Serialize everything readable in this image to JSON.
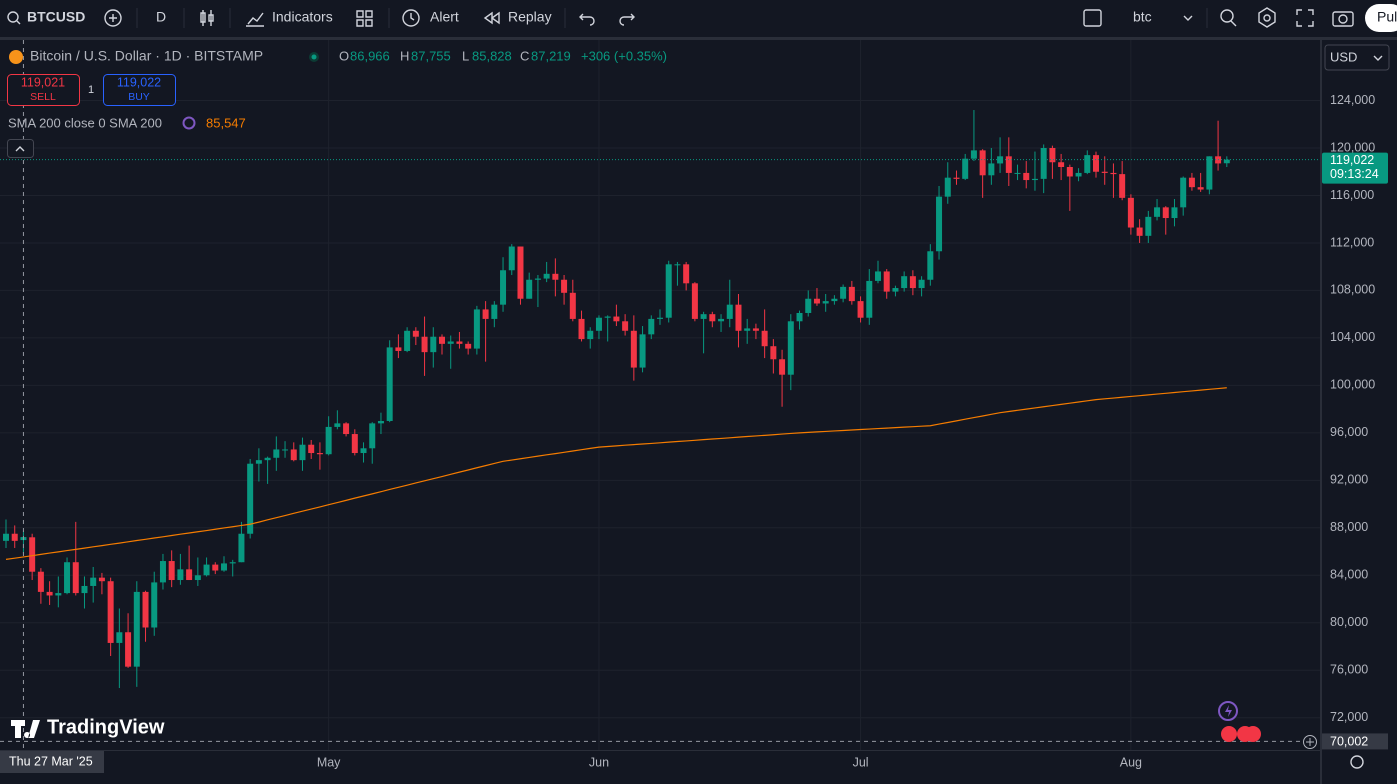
{
  "toolbar": {
    "symbol": "BTCUSD",
    "interval": "D",
    "indicators": "Indicators",
    "alert": "Alert",
    "replay": "Replay",
    "layout": "btc",
    "publish": "Pul"
  },
  "legend": {
    "title": "Bitcoin / U.S. Dollar · 1D · BITSTAMP",
    "o_label": "O",
    "open": "86,966",
    "h_label": "H",
    "high": "87,755",
    "l_label": "L",
    "low": "85,828",
    "c_label": "C",
    "close": "87,219",
    "change": "+306 (+0.35%)"
  },
  "trade": {
    "sell_price": "119,021",
    "sell": "SELL",
    "quantity": "1",
    "buy_price": "119,022",
    "buy": "BUY"
  },
  "indicator": {
    "name": "SMA 200 close 0 SMA 200",
    "value": "85,547"
  },
  "currency": "USD",
  "brand": "TradingView",
  "crosshair_date": "Thu 27 Mar '25",
  "countdown": "09:13:24",
  "chart_data": {
    "type": "candlestick",
    "up_color": "#089981",
    "down_color": "#f23645",
    "grid": true,
    "categories": [
      null,
      null,
      null,
      null,
      null,
      null,
      null,
      null,
      null,
      null,
      null,
      null,
      null,
      null,
      null,
      null,
      null,
      null,
      null,
      null,
      null,
      null,
      null,
      null,
      null,
      null,
      null,
      null,
      null,
      null,
      null,
      null,
      null,
      null,
      null,
      null,
      null,
      "May",
      null,
      null,
      null,
      null,
      null,
      null,
      null,
      null,
      null,
      null,
      null,
      null,
      null,
      null,
      null,
      null,
      null,
      null,
      null,
      null,
      null,
      null,
      null,
      null,
      null,
      null,
      null,
      null,
      null,
      null,
      "Jun",
      null,
      null,
      null,
      null,
      null,
      null,
      null,
      null,
      null,
      null,
      null,
      null,
      null,
      null,
      null,
      null,
      null,
      null,
      null,
      null,
      null,
      null,
      null,
      null,
      null,
      null,
      null,
      null,
      null,
      "Jul",
      null,
      null,
      null,
      null,
      null,
      null,
      null,
      null,
      null,
      null,
      null,
      null,
      null,
      null,
      null,
      null,
      null,
      null,
      null,
      null,
      null,
      null,
      null,
      null,
      null,
      null,
      null,
      null,
      null,
      null,
      "Aug",
      null,
      null,
      null,
      null,
      null,
      null,
      null,
      null,
      null,
      null,
      null
    ],
    "open": [
      86900,
      87500,
      86966,
      87200,
      84300,
      82600,
      82300,
      82500,
      85100,
      82500,
      83100,
      83800,
      83500,
      78300,
      79200,
      76300,
      82600,
      79600,
      83400,
      85200,
      83600,
      84500,
      83600,
      84000,
      84900,
      84400,
      85000,
      85100,
      87500,
      93400,
      93700,
      93900,
      94600,
      94600,
      93700,
      95000,
      94300,
      94200,
      96500,
      96800,
      95900,
      94300,
      94700,
      96800,
      97000,
      103200,
      102900,
      104600,
      104100,
      102800,
      104100,
      103500,
      103700,
      103500,
      103100,
      106400,
      105600,
      106800,
      109700,
      111700,
      107300,
      108900,
      109000,
      109400,
      108900,
      107800,
      105600,
      103900,
      104600,
      105700,
      105800,
      105400,
      104600,
      101500,
      104300,
      105600,
      105700,
      110200,
      110200,
      108600,
      105600,
      106000,
      105400,
      105600,
      106800,
      104600,
      104800,
      104600,
      103300,
      102200,
      100900,
      105400,
      106100,
      107300,
      106900,
      107100,
      107300,
      108300,
      107100,
      105700,
      108800,
      109600,
      107900,
      108200,
      109200,
      108200,
      108900,
      111300,
      115900,
      117500,
      117400,
      119100,
      119800,
      117700,
      118700,
      119300,
      117900,
      117900,
      117300,
      117400,
      120000,
      118800,
      118400,
      117600,
      117900,
      119400,
      118000,
      117900,
      117800,
      115800,
      113300,
      112600,
      114200,
      115000,
      114100,
      115000,
      117500,
      116700,
      116500,
      119300,
      118716
    ],
    "high": [
      88700,
      88200,
      87755,
      87500,
      84600,
      83500,
      83900,
      85500,
      88500,
      83900,
      84700,
      84200,
      83800,
      81200,
      80800,
      83500,
      82700,
      84300,
      85800,
      86100,
      85800,
      86500,
      85500,
      85500,
      85100,
      85600,
      85300,
      88500,
      93800,
      94700,
      94000,
      95700,
      95300,
      95200,
      95600,
      95400,
      95200,
      97400,
      97900,
      96900,
      96300,
      95200,
      96900,
      97700,
      103800,
      104300,
      104900,
      104900,
      105800,
      104900,
      104300,
      104200,
      104500,
      103700,
      106700,
      107100,
      107100,
      110800,
      111900,
      111700,
      109500,
      109300,
      110400,
      110700,
      109300,
      108900,
      106300,
      104900,
      105900,
      105900,
      106800,
      106000,
      105900,
      105000,
      105900,
      106400,
      110500,
      110400,
      110400,
      108700,
      106200,
      106200,
      106000,
      108900,
      107700,
      105600,
      105200,
      106400,
      103900,
      103000,
      106000,
      106300,
      108000,
      108200,
      107700,
      107600,
      108500,
      108800,
      107500,
      109800,
      110500,
      109800,
      108400,
      109600,
      109700,
      109200,
      111900,
      116800,
      118800,
      118100,
      119500,
      123200,
      119900,
      120000,
      120900,
      120900,
      118600,
      118900,
      119700,
      120300,
      120200,
      119500,
      118600,
      118300,
      119800,
      119700,
      119300,
      118700,
      118900,
      116100,
      114000,
      114700,
      115700,
      115100,
      115700,
      117600,
      117900,
      117900,
      119300,
      122300,
      119300
    ],
    "low": [
      86300,
      86300,
      85828,
      83600,
      81600,
      81500,
      81300,
      82400,
      82300,
      81200,
      81700,
      82400,
      77200,
      74500,
      76200,
      74600,
      78400,
      78900,
      82800,
      83000,
      83200,
      83600,
      83100,
      83900,
      84100,
      84300,
      83900,
      85100,
      87100,
      91900,
      91700,
      92800,
      93900,
      93600,
      92800,
      93800,
      92900,
      94100,
      96300,
      95700,
      94100,
      93500,
      93400,
      95900,
      96900,
      102300,
      102800,
      103400,
      100800,
      101500,
      102600,
      101400,
      103100,
      102600,
      102600,
      102000,
      104900,
      106200,
      109300,
      106800,
      107300,
      106600,
      108700,
      107500,
      106800,
      105400,
      103700,
      103100,
      103900,
      103700,
      105000,
      104200,
      100400,
      101100,
      103900,
      105100,
      105300,
      108400,
      108000,
      105400,
      102700,
      104900,
      104500,
      104900,
      103200,
      103500,
      103900,
      102300,
      101000,
      98200,
      99600,
      104700,
      105800,
      106700,
      106200,
      106800,
      107000,
      106800,
      105300,
      105100,
      108600,
      107300,
      107500,
      107900,
      107600,
      107500,
      108400,
      110600,
      115300,
      116900,
      117300,
      118900,
      115800,
      116900,
      117900,
      116800,
      117300,
      116600,
      116400,
      116200,
      117400,
      117300,
      114700,
      117200,
      117800,
      117500,
      116900,
      115800,
      115600,
      112700,
      112000,
      112000,
      113900,
      112700,
      113400,
      114300,
      116400,
      116300,
      116100,
      118100,
      118400
    ],
    "close": [
      87500,
      86900,
      87219,
      84300,
      82600,
      82300,
      82500,
      85100,
      82500,
      83100,
      83800,
      83500,
      78300,
      79200,
      76300,
      82600,
      79600,
      83400,
      85200,
      83600,
      84500,
      83600,
      84000,
      84900,
      84400,
      85000,
      85100,
      87500,
      93400,
      93700,
      93900,
      94600,
      94600,
      93700,
      95000,
      94300,
      94200,
      96500,
      96800,
      95900,
      94300,
      94700,
      96800,
      97000,
      103200,
      102900,
      104600,
      104100,
      102800,
      104100,
      103500,
      103700,
      103500,
      103100,
      106400,
      105600,
      106800,
      109700,
      111700,
      107300,
      108900,
      109000,
      109400,
      108900,
      107800,
      105600,
      103900,
      104600,
      105700,
      105800,
      105400,
      104600,
      101500,
      104300,
      105600,
      105700,
      110200,
      110200,
      108600,
      105600,
      106000,
      105400,
      105600,
      106800,
      104600,
      104800,
      104600,
      103300,
      102200,
      100900,
      105400,
      106100,
      107300,
      106900,
      107100,
      107300,
      108300,
      107100,
      105700,
      108800,
      109600,
      107900,
      108200,
      109200,
      108200,
      108900,
      111300,
      115900,
      117500,
      117400,
      119100,
      119800,
      117700,
      118700,
      119300,
      117900,
      117900,
      117300,
      117400,
      120000,
      118800,
      118400,
      117600,
      117900,
      119400,
      118000,
      117900,
      117800,
      115800,
      113300,
      112600,
      114200,
      115000,
      114100,
      115000,
      117500,
      116700,
      116500,
      119300,
      118700,
      119022
    ],
    "sma": {
      "color": "#f57c00",
      "values": [
        85340,
        85440,
        85547,
        85650,
        85760,
        85870,
        85970,
        86080,
        86180,
        86290,
        86400,
        86500,
        86610,
        86710,
        86820,
        86930,
        87030,
        87140,
        87240,
        87350,
        87460,
        87560,
        87670,
        87770,
        87880,
        87990,
        88090,
        88200,
        88300,
        88480,
        88670,
        88850,
        89030,
        89220,
        89400,
        89580,
        89760,
        89950,
        90130,
        90310,
        90500,
        90680,
        90860,
        91040,
        91230,
        91410,
        91590,
        91780,
        91960,
        92140,
        92320,
        92510,
        92690,
        92870,
        93060,
        93240,
        93420,
        93600,
        93710,
        93820,
        93930,
        94040,
        94150,
        94250,
        94360,
        94470,
        94580,
        94690,
        94800,
        94850,
        94900,
        94960,
        95010,
        95060,
        95110,
        95160,
        95220,
        95270,
        95320,
        95370,
        95430,
        95480,
        95530,
        95580,
        95640,
        95690,
        95740,
        95790,
        95840,
        95900,
        95950,
        96000,
        96040,
        96080,
        96120,
        96160,
        96200,
        96240,
        96280,
        96320,
        96360,
        96400,
        96440,
        96480,
        96520,
        96560,
        96600,
        96740,
        96870,
        97010,
        97150,
        97290,
        97420,
        97560,
        97700,
        97800,
        97900,
        98000,
        98100,
        98200,
        98300,
        98400,
        98500,
        98600,
        98700,
        98800,
        98870,
        98930,
        99000,
        99070,
        99130,
        99200,
        99270,
        99330,
        99400,
        99470,
        99530,
        99600,
        99670,
        99730,
        99800
      ]
    },
    "last_price": {
      "value": 119022,
      "label": "119,022"
    },
    "crosshair_price": {
      "value": 70002,
      "label": "70,002"
    },
    "ylim": [
      69700,
      129100
    ],
    "yticks": [
      {
        "value": 72000,
        "label": "72,000"
      },
      {
        "value": 76000,
        "label": "76,000"
      },
      {
        "value": 80000,
        "label": "80,000"
      },
      {
        "value": 84000,
        "label": "84,000"
      },
      {
        "value": 88000,
        "label": "88,000"
      },
      {
        "value": 92000,
        "label": "92,000"
      },
      {
        "value": 96000,
        "label": "96,000"
      },
      {
        "value": 100000,
        "label": "100,000"
      },
      {
        "value": 104000,
        "label": "104,000"
      },
      {
        "value": 108000,
        "label": "108,000"
      },
      {
        "value": 112000,
        "label": "112,000"
      },
      {
        "value": 116000,
        "label": "116,000"
      },
      {
        "value": 120000,
        "label": "120,000"
      },
      {
        "value": 124000,
        "label": "124,000"
      }
    ]
  }
}
